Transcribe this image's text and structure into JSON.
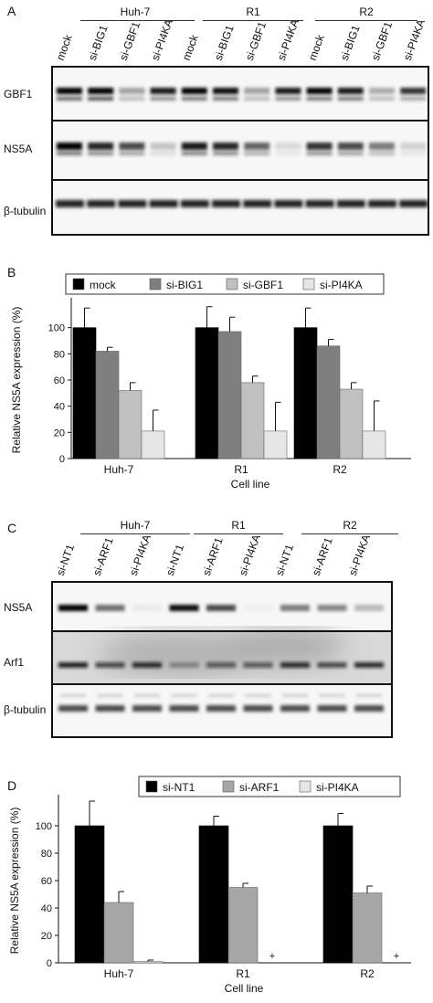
{
  "panelA": {
    "label": "A",
    "groups": [
      "Huh-7",
      "R1",
      "R2"
    ],
    "lanes": [
      "mock",
      "si-BIG1",
      "si-GBF1",
      "si-PI4KA",
      "mock",
      "si-BIG1",
      "si-GBF1",
      "si-PI4KA",
      "mock",
      "si-BIG1",
      "si-GBF1",
      "si-PI4KA"
    ],
    "rows": [
      "GBF1",
      "NS5A",
      "β-tubulin"
    ]
  },
  "panelB": {
    "label": "B",
    "chart_data": {
      "type": "bar",
      "categories": [
        "Huh-7",
        "R1",
        "R2"
      ],
      "series": [
        {
          "name": "mock",
          "values": [
            100,
            100,
            100
          ],
          "errors": [
            15,
            16,
            15
          ],
          "color": "#000000"
        },
        {
          "name": "si-BIG1",
          "values": [
            82,
            97,
            86
          ],
          "errors": [
            3,
            11,
            5
          ],
          "color": "#7f7f7f"
        },
        {
          "name": "si-GBF1",
          "values": [
            52,
            58,
            53
          ],
          "errors": [
            6,
            5,
            5
          ],
          "color": "#c0c0c0"
        },
        {
          "name": "si-PI4KA",
          "values": [
            21,
            21,
            21
          ],
          "errors": [
            16,
            22,
            23
          ],
          "color": "#e6e6e6"
        }
      ],
      "ylabel": "Relative NS5A expression (%)",
      "xlabel": "Cell line",
      "yticks": [
        0,
        20,
        40,
        60,
        80,
        100
      ],
      "ylim": [
        0,
        120
      ],
      "legend": "top"
    }
  },
  "panelC": {
    "label": "C",
    "groups": [
      "Huh-7",
      "R1",
      "R2"
    ],
    "lanes": [
      "si-NT1",
      "si-ARF1",
      "si-PI4KA",
      "si-NT1",
      "si-ARF1",
      "si-PI4KA",
      "si-NT1",
      "si-ARF1",
      "si-PI4KA"
    ],
    "rows": [
      "NS5A",
      "Arf1",
      "β-tubulin"
    ]
  },
  "panelD": {
    "label": "D",
    "chart_data": {
      "type": "bar",
      "categories": [
        "Huh-7",
        "R1",
        "R2"
      ],
      "series": [
        {
          "name": "si-NT1",
          "values": [
            100,
            100,
            100
          ],
          "errors": [
            18,
            7,
            9
          ],
          "color": "#000000"
        },
        {
          "name": "si-ARF1",
          "values": [
            44,
            55,
            51
          ],
          "errors": [
            8,
            3,
            5
          ],
          "color": "#a6a6a6"
        },
        {
          "name": "si-PI4KA",
          "values": [
            1,
            0,
            0
          ],
          "errors": [
            1,
            0,
            0
          ],
          "color": "#e6e6e6"
        }
      ],
      "markers": [
        "",
        "+",
        "+"
      ],
      "ylabel": "Relative NS5A expression (%)",
      "xlabel": "Cell line",
      "yticks": [
        0,
        20,
        40,
        60,
        80,
        100
      ],
      "ylim": [
        0,
        120
      ],
      "legend": "top"
    }
  }
}
